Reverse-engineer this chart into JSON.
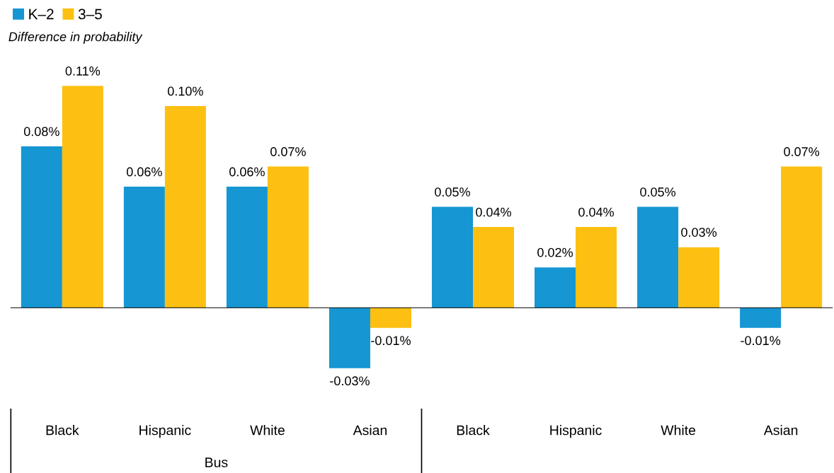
{
  "chart_data": {
    "type": "bar",
    "ylabel": "Difference in probability",
    "categories": [
      "Black",
      "Hispanic",
      "White",
      "Asian",
      "Black",
      "Hispanic",
      "White",
      "Asian"
    ],
    "series": [
      {
        "name": "K–2",
        "color": "#1696d2",
        "values": [
          0.08,
          0.06,
          0.06,
          -0.03,
          0.05,
          0.02,
          0.05,
          -0.01
        ],
        "value_labels": [
          "0.08%",
          "0.06%",
          "0.06%",
          "-0.03%",
          "0.05%",
          "0.02%",
          "0.05%",
          "-0.01%"
        ]
      },
      {
        "name": "3–5",
        "color": "#fdbf11",
        "values": [
          0.11,
          0.1,
          0.07,
          -0.01,
          0.04,
          0.04,
          0.03,
          0.07
        ],
        "value_labels": [
          "0.11%",
          "0.10%",
          "0.07%",
          "-0.01%",
          "0.04%",
          "0.04%",
          "0.03%",
          "0.07%"
        ]
      }
    ],
    "annotations": [
      "Bus"
    ],
    "legend": "top left"
  }
}
